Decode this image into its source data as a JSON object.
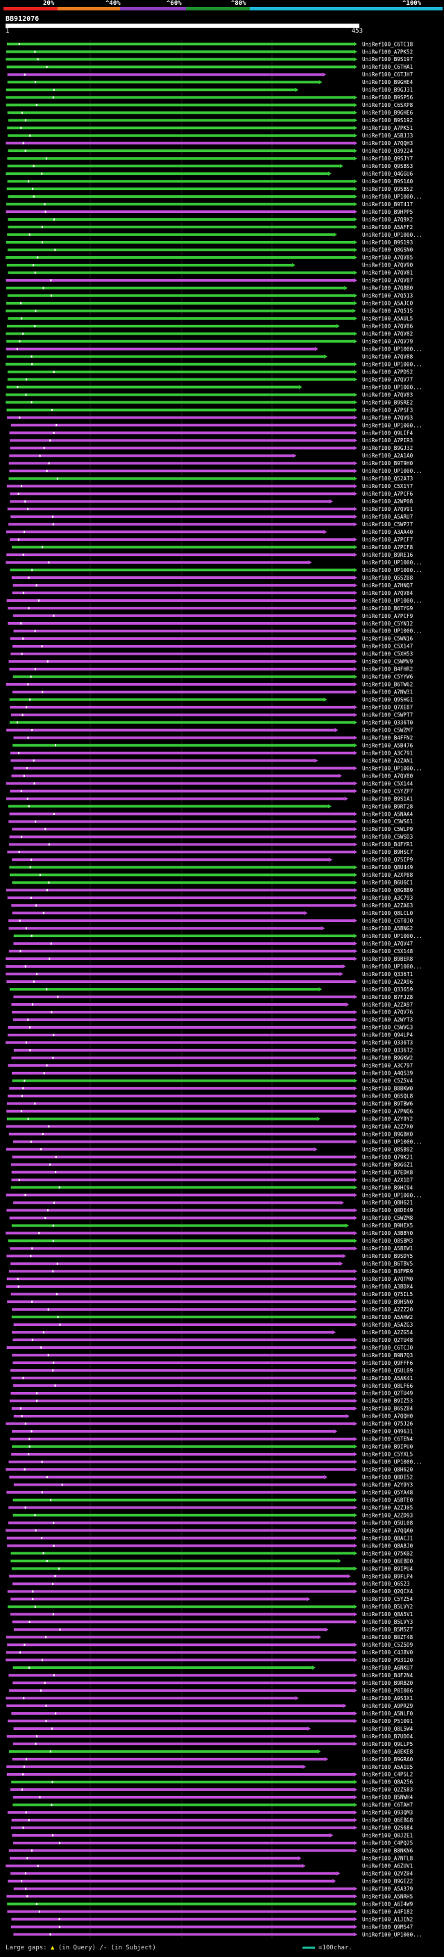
{
  "colors": {
    "scale": [
      "#e8231f",
      "#e87a1f",
      "#8e3fbf",
      "#1f8f2f",
      "#1fb7d8"
    ],
    "hit_green": "#37c837",
    "hit_magenta": "#c04fd8",
    "background": "#000000"
  },
  "scale_labels": [
    "20%",
    "^40%",
    "^60%",
    "^80%",
    "^100%"
  ],
  "query_id": "BB912076",
  "ruler": {
    "start": "1",
    "end": "453"
  },
  "hits": [
    "UniRef100_C6TC18",
    "UniRef100_A7PK52",
    "UniRef100_B9S197",
    "UniRef100_C6THA1",
    "UniRef100_C6TJH7",
    "UniRef100_B9GHE4",
    "UniRef100_B9GJ31",
    "UniRef100_B9SP56",
    "UniRef100_C6SXP8",
    "UniRef100_B9GHE6",
    "UniRef100_B9S192",
    "UniRef100_A7PK51",
    "UniRef100_A5BJJ3",
    "UniRef100_A7QQH3",
    "UniRef100_Q39224",
    "UniRef100_Q9SJY7",
    "UniRef100_Q9SBS3",
    "UniRef100_Q4GGU6",
    "UniRef100_B9S1A0",
    "UniRef100_Q9SBS2",
    "UniRef100_UP1000...",
    "UniRef100_B9T417",
    "UniRef100_B9HPP5",
    "UniRef100_A7Q9X2",
    "UniRef100_A5AFF2",
    "UniRef100_UP1000...",
    "UniRef100_B9S193",
    "UniRef100_Q8GSN0",
    "UniRef100_A7QV85",
    "UniRef100_A7QV90",
    "UniRef100_A7QV81",
    "UniRef100_A7QV87",
    "UniRef100_A7Q8B0",
    "UniRef100_A7Q513",
    "UniRef100_A5AJC0",
    "UniRef100_A7Q515",
    "UniRef100_A5AUL5",
    "UniRef100_A7QV86",
    "UniRef100_A7QV82",
    "UniRef100_A7QV79",
    "UniRef100_UP1000...",
    "UniRef100_A7QV88",
    "UniRef100_UP1000...",
    "UniRef100_A7PDS2",
    "UniRef100_A7QV77",
    "UniRef100_UP1000...",
    "UniRef100_A7QV83",
    "UniRef100_B9SRE2",
    "UniRef100_A7PSF3",
    "UniRef100_A7QV93",
    "UniRef100_UP1000...",
    "UniRef100_Q9LIF4",
    "UniRef100_A7PIR3",
    "UniRef100_B9GJ32",
    "UniRef100_A2A1A0",
    "UniRef100_B9T9H0",
    "UniRef100_UP1000...",
    "UniRef100_Q52AT3",
    "UniRef100_C5X1Y7",
    "UniRef100_A7PCF6",
    "UniRef100_A2WP08",
    "UniRef100_A7QV91",
    "UniRef100_A5ARU7",
    "UniRef100_C5WP77",
    "UniRef100_A3AA40",
    "UniRef100_A7PCF7",
    "UniRef100_A7PCF8",
    "UniRef100_B9RE16",
    "UniRef100_UP1000...",
    "UniRef100_UP1000...",
    "UniRef100_Q5SZ08",
    "UniRef100_A7HNQ7",
    "UniRef100_A7QV84",
    "UniRef100_UP1000...",
    "UniRef100_B6TYG9",
    "UniRef100_A7PCF9",
    "UniRef100_C5YN12",
    "UniRef100_UP1000...",
    "UniRef100_C5WN16",
    "UniRef100_C5X147",
    "UniRef100_C5XH53",
    "UniRef100_C5WMV9",
    "UniRef100_B4FHR2",
    "UniRef100_C5YYW6",
    "UniRef100_B6TW62",
    "UniRef100_A7NW31",
    "UniRef100_Q9SHG1",
    "UniRef100_Q7XE87",
    "UniRef100_C5WPT7",
    "UniRef100_Q336T0",
    "UniRef100_C5WZM7",
    "UniRef100_B4FFN2",
    "UniRef100_A5B476",
    "UniRef100_A3C791",
    "UniRef100_A2ZAN1",
    "UniRef100_UP1000...",
    "UniRef100_A7QV80",
    "UniRef100_C5X144",
    "UniRef100_C5YZP7",
    "UniRef100_B9S1A1",
    "UniRef100_B9RT28",
    "UniRef100_A5NAA4",
    "UniRef100_C5WS61",
    "UniRef100_C5WLP9",
    "UniRef100_C5WSD3",
    "UniRef100_B4FYR1",
    "UniRef100_B9HSC7",
    "UniRef100_Q75IP9",
    "UniRef100_Q8U449",
    "UniRef100_A2XP88",
    "UniRef100_B6U6C1",
    "UniRef100_Q8GBB9",
    "UniRef100_A3C793",
    "UniRef100_A2ZA63",
    "UniRef100_Q8LCL0",
    "UniRef100_C6T0J0",
    "UniRef100_A5BNG2",
    "UniRef100_UP1000...",
    "UniRef100_A7QV47",
    "UniRef100_C5X148",
    "UniRef100_B9BER8",
    "UniRef100_UP1000...",
    "UniRef100_Q336T1",
    "UniRef100_A2ZA96",
    "UniRef100_Q33659",
    "UniRef100_B7FJZ8",
    "UniRef100_A2ZA97",
    "UniRef100_A7QV76",
    "UniRef100_A2WYT3",
    "UniRef100_C5WVG3",
    "UniRef100_Q94LP4",
    "UniRef100_Q336T3",
    "UniRef100_Q336T2",
    "UniRef100_B9GKW2",
    "UniRef100_A3C797",
    "UniRef100_A4QS39",
    "UniRef100_C5Z5V4",
    "UniRef100_B8BKW0",
    "UniRef100_Q6SQL8",
    "UniRef100_B9TBW6",
    "UniRef100_A7PNQ6",
    "UniRef100_A2Y9Y2",
    "UniRef100_A2Z7X0",
    "UniRef100_B9GBK0",
    "UniRef100_UP1000...",
    "UniRef100_Q8SB92",
    "UniRef100_Q79K21",
    "UniRef100_B9GGZ1",
    "UniRef100_B7EDK8",
    "UniRef100_A2X1D7",
    "UniRef100_B9HC94",
    "UniRef100_UP1000...",
    "UniRef100_Q8H621",
    "UniRef100_Q0DE49",
    "UniRef100_C5WZM8",
    "UniRef100_B9HEX5",
    "UniRef100_A3BBY0",
    "UniRef100_Q8SBM3",
    "UniRef100_A5BEW1",
    "UniRef100_B9SDY5",
    "UniRef100_B6TBV5",
    "UniRef100_B4FMR9",
    "UniRef100_A7QTM0",
    "UniRef100_A3BDX4",
    "UniRef100_Q75IL5",
    "UniRef100_B9HSN0",
    "UniRef100_A2ZZ20",
    "UniRef100_A5AHW2",
    "UniRef100_A5AZG3",
    "UniRef100_A2ZG54",
    "UniRef100_Q2TU48",
    "UniRef100_C6TCJ0",
    "UniRef100_B9N7Q3",
    "UniRef100_Q9FFF6",
    "UniRef100_Q5UL09",
    "UniRef100_A5AK41",
    "UniRef100_Q8LF66",
    "UniRef100_Q2TU49",
    "UniRef100_B9IZ53",
    "UniRef100_B6SZ84",
    "UniRef100_A7QQH0",
    "UniRef100_Q75J26",
    "UniRef100_Q49631",
    "UniRef100_C6TEN4",
    "UniRef100_B9IPU0",
    "UniRef100_C5YXL5",
    "UniRef100_UP1000...",
    "UniRef100_Q8H620",
    "UniRef100_Q0DE52",
    "UniRef100_A2Y9Y3",
    "UniRef100_Q5YA48",
    "UniRef100_A5BTE0",
    "UniRef100_A2ZJ05",
    "UniRef100_A2ZD93",
    "UniRef100_Q5UL08",
    "UniRef100_A7QQA0",
    "UniRef100_Q8ACJ1",
    "UniRef100_Q8A8J0",
    "UniRef100_Q75K02",
    "UniRef100_Q6EBD0",
    "UniRef100_B9IPU4",
    "UniRef100_B9FLP4",
    "UniRef100_Q6S23",
    "UniRef100_Q2QCX4",
    "UniRef100_C5YZ54",
    "UniRef100_B5LVY2",
    "UniRef100_Q8A5V1",
    "UniRef100_B5LVY3",
    "UniRef100_B5M5Z7",
    "UniRef100_B0ZT48",
    "UniRef100_C5Z5D9",
    "UniRef100_C4J8V0",
    "UniRef100_P93120",
    "UniRef100_A6NKU7",
    "UniRef100_B4F2N4",
    "UniRef100_B9RBZ0",
    "UniRef100_P0I006",
    "UniRef100_A9S3X1",
    "UniRef100_A9PRZ9",
    "UniRef100_A5NLF0",
    "UniRef100_P51091",
    "UniRef100_Q8L5W4",
    "UniRef100_B7UDO4",
    "UniRef100_Q9LLP5",
    "UniRef100_A0EKE8",
    "UniRef100_B9GRA0",
    "UniRef100_A5A1U5",
    "UniRef100_C4PSL2",
    "UniRef100_Q8A256",
    "UniRef100_Q2ZS83",
    "UniRef100_B5NWH4",
    "UniRef100_C6TAH7",
    "UniRef100_Q93QM3",
    "UniRef100_Q6EBG8",
    "UniRef100_Q2S684",
    "UniRef100_Q0J2E1",
    "UniRef100_C4PQ25",
    "UniRef100_B8NKN6",
    "UniRef100_A7NTL8",
    "UniRef100_A6ZUV1",
    "UniRef100_Q2VZ04",
    "UniRef100_B9GEZ2",
    "UniRef100_A5A379",
    "UniRef100_A5NRH5",
    "UniRef100_A6I4W9",
    "UniRef100_A4F182",
    "UniRef100_A1JIN2",
    "UniRef100_Q9MS47",
    "UniRef100_UP1000..."
  ],
  "legend": {
    "gaps_label": "Large gaps:",
    "query_text": "(in Query)",
    "subject_text": "/- (in Subject)",
    "scale_label": "=100char."
  }
}
